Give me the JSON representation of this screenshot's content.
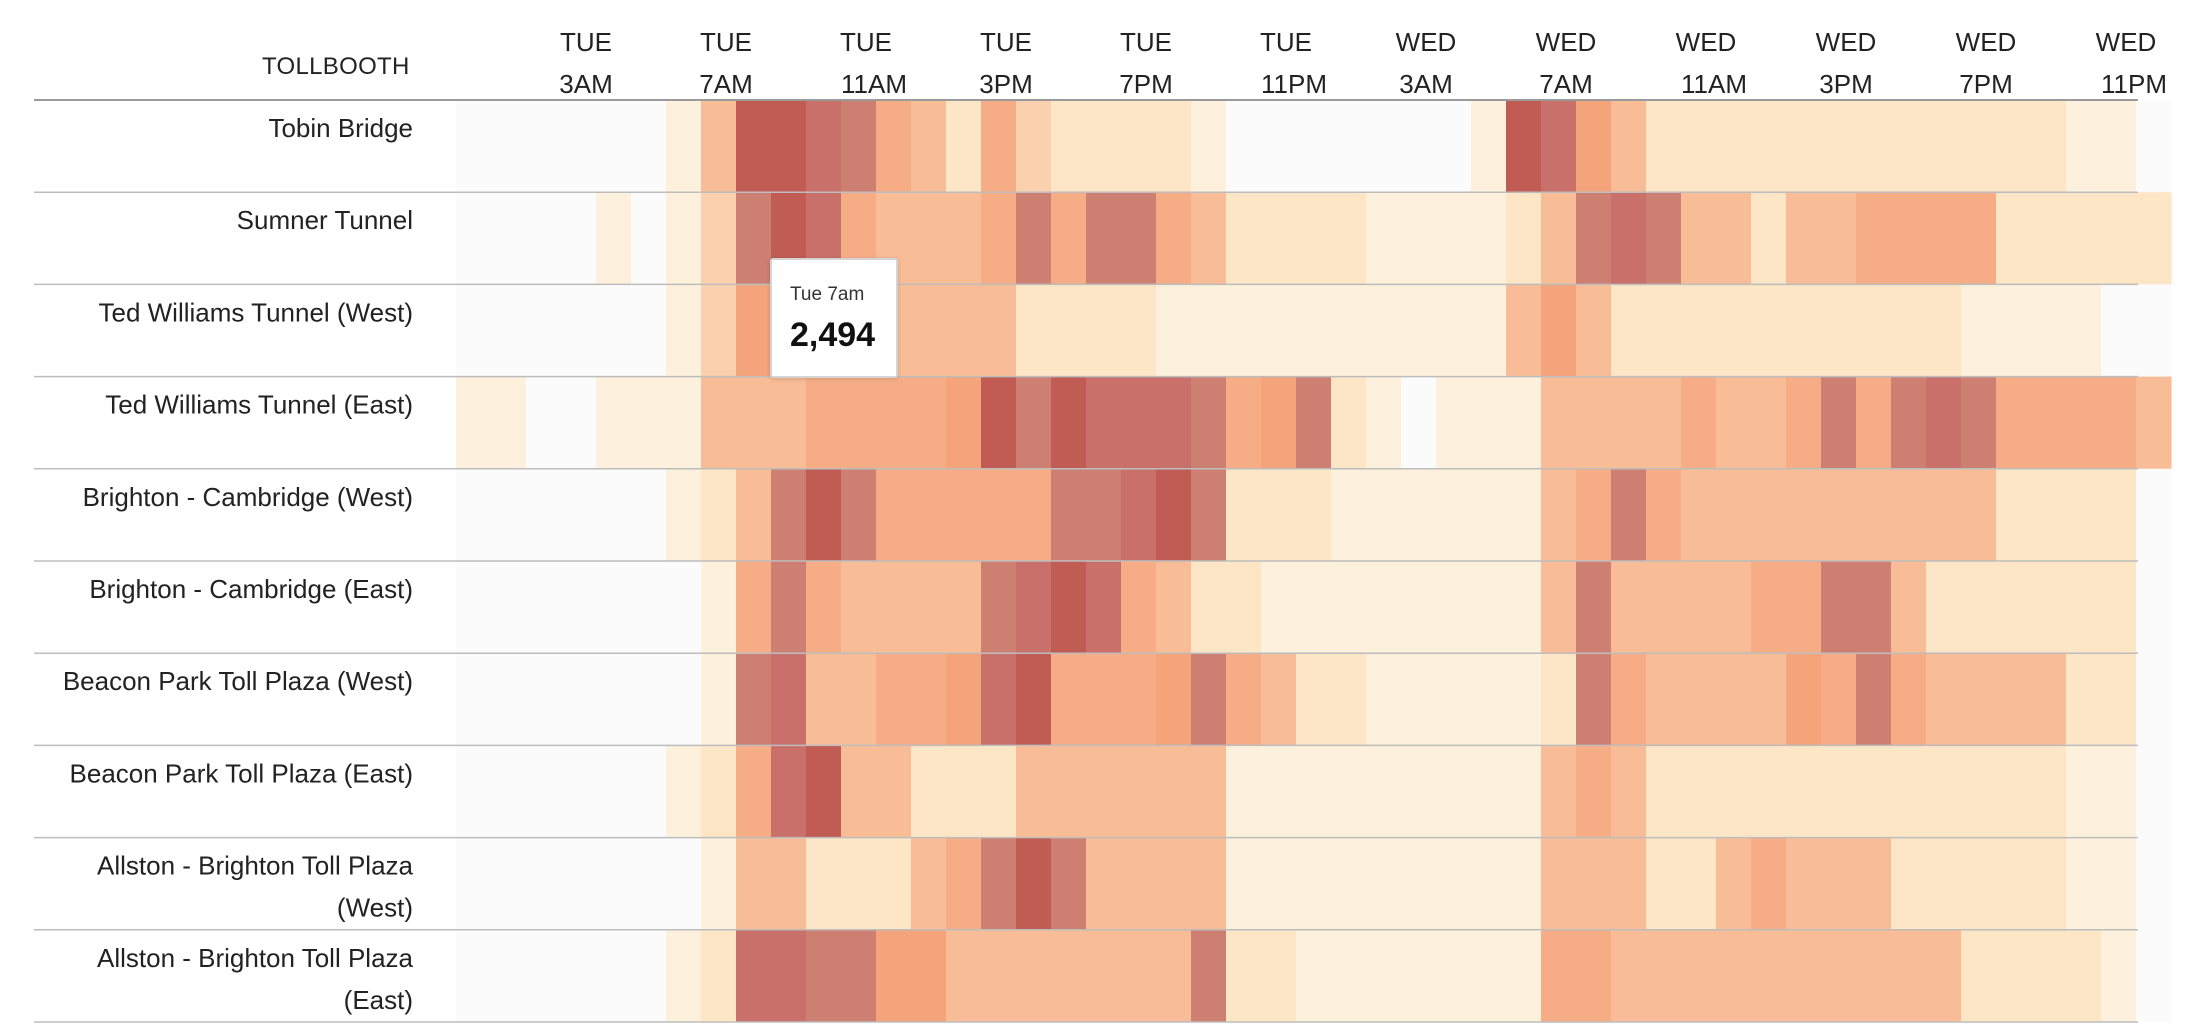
{
  "chart_data": {
    "type": "heatmap",
    "row_header": "TOLLBOOTH",
    "column_labels": [
      {
        "day": "TUE",
        "time": "3AM"
      },
      {
        "day": "TUE",
        "time": "7AM"
      },
      {
        "day": "TUE",
        "time": "11AM"
      },
      {
        "day": "TUE",
        "time": "3PM"
      },
      {
        "day": "TUE",
        "time": "7PM"
      },
      {
        "day": "TUE",
        "time": "11PM"
      },
      {
        "day": "WED",
        "time": "3AM"
      },
      {
        "day": "WED",
        "time": "7AM"
      },
      {
        "day": "WED",
        "time": "11AM"
      },
      {
        "day": "WED",
        "time": "3PM"
      },
      {
        "day": "WED",
        "time": "7PM"
      },
      {
        "day": "WED",
        "time": "11PM"
      }
    ],
    "rows": [
      {
        "name": [
          "Tobin Bridge"
        ],
        "values": [
          0,
          0,
          0,
          0,
          0,
          0,
          1,
          4,
          9,
          9,
          8,
          7,
          5,
          4,
          2,
          5,
          3,
          2,
          2,
          2,
          2,
          1,
          0,
          0,
          0,
          0,
          0,
          0,
          0,
          1,
          9,
          8,
          6,
          4,
          2,
          2,
          2,
          2,
          2,
          2,
          2,
          2,
          2,
          2,
          2,
          2,
          1,
          1,
          0
        ]
      },
      {
        "name": [
          "Sumner Tunnel"
        ],
        "values": [
          0,
          0,
          0,
          0,
          1,
          0,
          1,
          3,
          7,
          9,
          8,
          5,
          4,
          4,
          4,
          5,
          7,
          5,
          7,
          7,
          5,
          4,
          2,
          2,
          2,
          2,
          1,
          1,
          1,
          1,
          2,
          4,
          7,
          8,
          7,
          4,
          4,
          2,
          4,
          4,
          5,
          5,
          5,
          5,
          2,
          2,
          2,
          2,
          2
        ]
      },
      {
        "name": [
          "Ted Williams Tunnel (West)"
        ],
        "values": [
          0,
          0,
          0,
          0,
          0,
          0,
          1,
          3,
          6,
          9,
          9,
          5,
          4,
          4,
          4,
          4,
          2,
          2,
          2,
          2,
          1,
          1,
          1,
          1,
          1,
          1,
          1,
          1,
          1,
          1,
          4,
          6,
          4,
          2,
          2,
          2,
          2,
          2,
          2,
          2,
          2,
          2,
          2,
          1,
          1,
          1,
          1,
          0,
          0
        ]
      },
      {
        "name": [
          "Ted Williams Tunnel (East)"
        ],
        "values": [
          1,
          1,
          0,
          0,
          1,
          1,
          1,
          4,
          4,
          4,
          5,
          5,
          5,
          5,
          6,
          9,
          7,
          9,
          8,
          8,
          8,
          7,
          5,
          6,
          7,
          2,
          1,
          0,
          1,
          1,
          1,
          4,
          4,
          4,
          4,
          5,
          4,
          4,
          5,
          7,
          5,
          7,
          8,
          7,
          5,
          5,
          5,
          5,
          4
        ]
      },
      {
        "name": [
          "Brighton - Cambridge (West)"
        ],
        "values": [
          0,
          0,
          0,
          0,
          0,
          0,
          1,
          2,
          4,
          7,
          9,
          7,
          5,
          5,
          5,
          5,
          5,
          7,
          7,
          8,
          9,
          7,
          2,
          2,
          2,
          1,
          1,
          1,
          1,
          1,
          1,
          4,
          5,
          7,
          5,
          4,
          4,
          4,
          4,
          4,
          4,
          4,
          4,
          4,
          2,
          2,
          2,
          2,
          0
        ]
      },
      {
        "name": [
          "Brighton - Cambridge (East)"
        ],
        "values": [
          0,
          0,
          0,
          0,
          0,
          0,
          0,
          1,
          5,
          7,
          5,
          4,
          4,
          4,
          4,
          7,
          8,
          9,
          8,
          5,
          4,
          2,
          2,
          1,
          1,
          1,
          1,
          1,
          1,
          1,
          1,
          4,
          7,
          4,
          4,
          4,
          4,
          5,
          5,
          7,
          7,
          4,
          2,
          2,
          2,
          2,
          2,
          2,
          0
        ]
      },
      {
        "name": [
          "Beacon Park Toll Plaza (West)"
        ],
        "values": [
          0,
          0,
          0,
          0,
          0,
          0,
          0,
          1,
          7,
          8,
          4,
          4,
          5,
          5,
          6,
          8,
          9,
          5,
          5,
          5,
          6,
          7,
          5,
          4,
          2,
          2,
          1,
          1,
          1,
          1,
          1,
          2,
          7,
          5,
          4,
          4,
          4,
          4,
          6,
          5,
          7,
          5,
          4,
          4,
          4,
          4,
          2,
          2,
          0
        ]
      },
      {
        "name": [
          "Beacon Park Toll Plaza (East)"
        ],
        "values": [
          0,
          0,
          0,
          0,
          0,
          0,
          1,
          2,
          5,
          8,
          9,
          4,
          4,
          2,
          2,
          2,
          4,
          4,
          4,
          4,
          4,
          4,
          1,
          1,
          1,
          1,
          1,
          1,
          1,
          1,
          1,
          4,
          5,
          4,
          2,
          2,
          2,
          2,
          2,
          2,
          2,
          2,
          2,
          2,
          2,
          2,
          1,
          1,
          0
        ]
      },
      {
        "name": [
          "Allston - Brighton Toll Plaza",
          "(West)"
        ],
        "values": [
          0,
          0,
          0,
          0,
          0,
          0,
          0,
          1,
          4,
          4,
          2,
          2,
          2,
          4,
          5,
          7,
          9,
          7,
          4,
          4,
          4,
          4,
          1,
          1,
          1,
          1,
          1,
          1,
          1,
          1,
          1,
          4,
          4,
          4,
          2,
          2,
          4,
          5,
          4,
          4,
          4,
          2,
          2,
          2,
          2,
          2,
          1,
          1,
          0
        ]
      },
      {
        "name": [
          "Allston - Brighton Toll Plaza",
          "(East)"
        ],
        "values": [
          0,
          0,
          0,
          0,
          0,
          0,
          1,
          2,
          8,
          8,
          7,
          7,
          6,
          6,
          4,
          4,
          4,
          4,
          4,
          4,
          4,
          7,
          2,
          2,
          1,
          1,
          1,
          1,
          1,
          1,
          1,
          5,
          5,
          4,
          4,
          4,
          4,
          4,
          4,
          4,
          4,
          4,
          4,
          2,
          2,
          2,
          2,
          1,
          0
        ]
      }
    ],
    "tooltip": {
      "label": "Tue 7am",
      "value": "2,494"
    },
    "scale_colors": [
      "#fbfbfb",
      "#fdf0dc",
      "#fde6c6",
      "#fbd0ae",
      "#f8bc96",
      "#f6ad86",
      "#f4a37a",
      "#cd7f72",
      "#c9706a",
      "#c05c54"
    ]
  }
}
